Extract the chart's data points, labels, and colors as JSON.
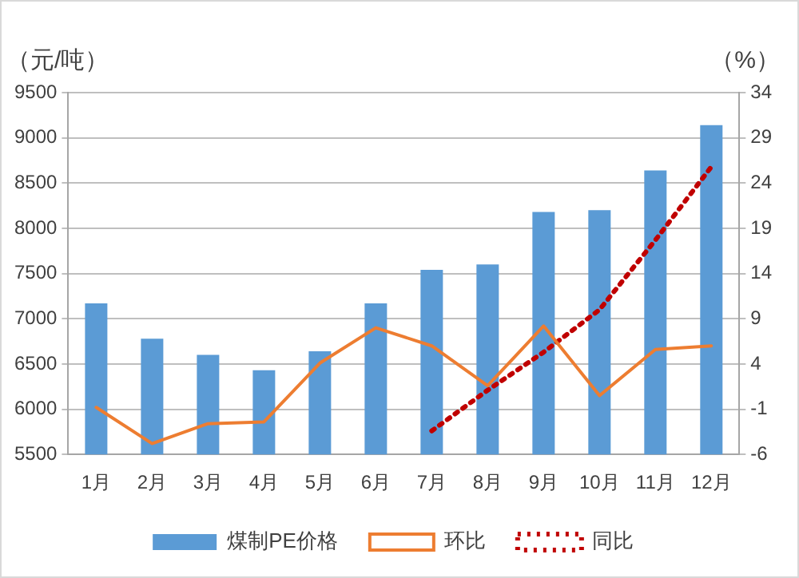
{
  "chart_data": {
    "type": "bar",
    "ylabel": "（元/吨）",
    "y2label": "（%）",
    "categories": [
      "1月",
      "2月",
      "3月",
      "4月",
      "5月",
      "6月",
      "7月",
      "8月",
      "9月",
      "10月",
      "11月",
      "12月"
    ],
    "series": [
      {
        "name": "煤制PE价格",
        "color": "#5b9bd5",
        "values": [
          7170,
          6780,
          6600,
          6430,
          6640,
          7170,
          7540,
          7600,
          8180,
          8200,
          8640,
          9140
        ]
      },
      {
        "name": "环比",
        "type": "line",
        "axis": "y2",
        "color": "#ed7d31",
        "line_style": "solid",
        "values": [
          -0.8,
          -4.8,
          -2.6,
          -2.4,
          4.1,
          8,
          6,
          1.6,
          8.2,
          0.5,
          5.6,
          6
        ]
      },
      {
        "name": "同比",
        "type": "line",
        "axis": "y2",
        "color": "#c00000",
        "line_style": "dotted",
        "values": [
          null,
          null,
          null,
          null,
          null,
          null,
          -3.4,
          1.1,
          5.3,
          10,
          17.7,
          25.8
        ]
      }
    ],
    "ylim": [
      5500,
      9500
    ],
    "yticks": [
      5500,
      6000,
      6500,
      7000,
      7500,
      8000,
      8500,
      9000,
      9500
    ],
    "y2lim": [
      -6,
      34
    ],
    "y2ticks": [
      -6,
      -1,
      4,
      9,
      14,
      19,
      24,
      29,
      34
    ],
    "grid": "y",
    "legend": "bottom",
    "marker": "none"
  }
}
